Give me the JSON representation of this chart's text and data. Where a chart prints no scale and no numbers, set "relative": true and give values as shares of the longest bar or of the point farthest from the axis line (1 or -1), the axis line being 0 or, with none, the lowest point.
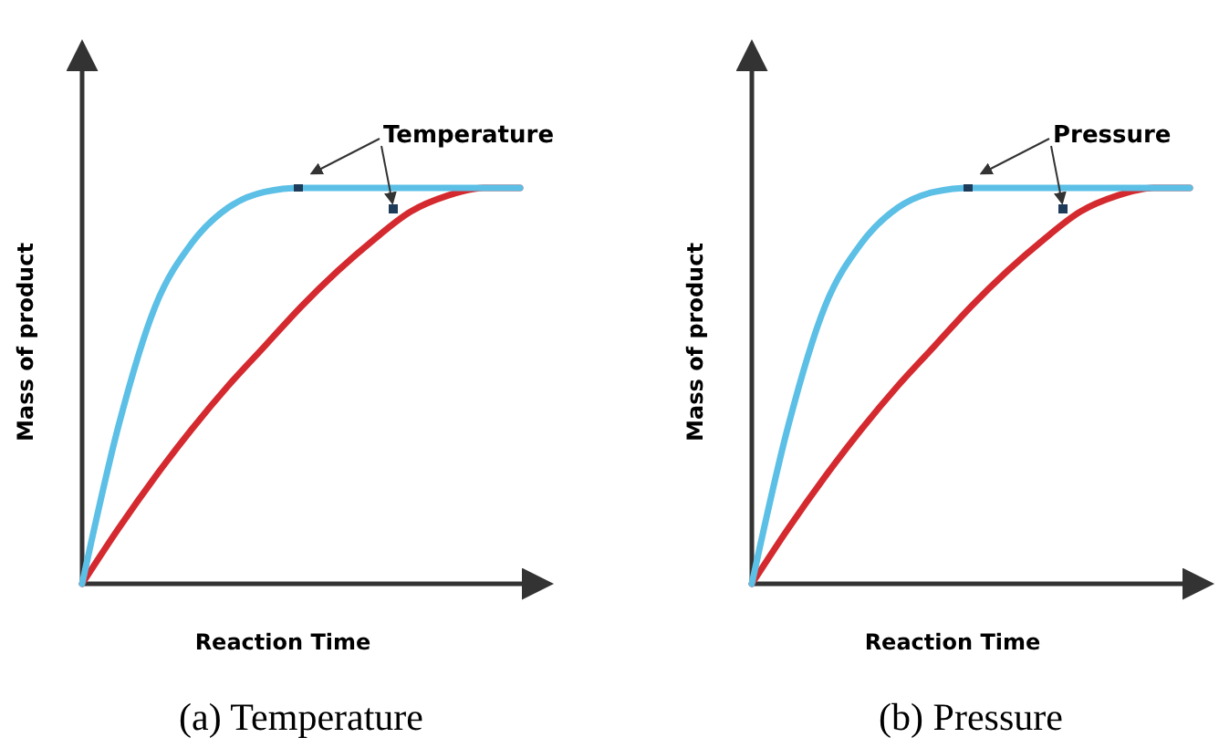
{
  "chart_data": [
    {
      "type": "line",
      "title": "(a) Temperature",
      "xlabel": "Reaction Time",
      "ylabel": "Mass of product",
      "annotations": [
        "Temperature"
      ],
      "relative": true,
      "categories": [
        null,
        null,
        null,
        null,
        null,
        null,
        null,
        null,
        null,
        null,
        null,
        null,
        null
      ],
      "series": [
        {
          "color": "#5bbfe6",
          "values": [
            0,
            0.4,
            0.7,
            0.86,
            0.95,
            0.99,
            1,
            1,
            1,
            1,
            1,
            1,
            1
          ]
        },
        {
          "color": "#d42a2f",
          "values": [
            0,
            0.14,
            0.27,
            0.39,
            0.5,
            0.6,
            0.7,
            0.79,
            0.87,
            0.94,
            0.98,
            1,
            1
          ]
        }
      ]
    },
    {
      "type": "line",
      "title": "(b) Pressure",
      "xlabel": "Reaction Time",
      "ylabel": "Mass of product",
      "annotations": [
        "Pressure"
      ],
      "relative": true,
      "categories": [
        null,
        null,
        null,
        null,
        null,
        null,
        null,
        null,
        null,
        null,
        null,
        null,
        null
      ],
      "series": [
        {
          "color": "#5bbfe6",
          "values": [
            0,
            0.4,
            0.7,
            0.86,
            0.95,
            0.99,
            1,
            1,
            1,
            1,
            1,
            1,
            1
          ]
        },
        {
          "color": "#d42a2f",
          "values": [
            0,
            0.14,
            0.27,
            0.39,
            0.5,
            0.6,
            0.7,
            0.79,
            0.87,
            0.94,
            0.98,
            1,
            1
          ]
        }
      ]
    }
  ]
}
